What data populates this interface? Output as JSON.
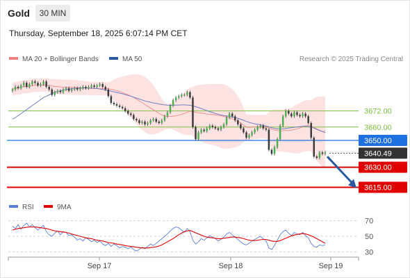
{
  "header": {
    "symbol": "Gold",
    "timeframe": "30 MIN",
    "datetime": "Thursday, September 18, 2025 6:07:14 PM CET"
  },
  "legend": {
    "bollinger_label": "MA 20 + Bollinger Bands",
    "bollinger_color": "#f08080",
    "ma50_label": "MA 50",
    "ma50_color": "#2c5aa0",
    "rsi_label": "RSI",
    "rsi_color": "#5b7fd6",
    "rsi_ma_label": "9MA",
    "rsi_ma_color": "#e00000",
    "source": "Research © 2025 Trading Central"
  },
  "colors": {
    "candle": "#4caf50",
    "band_fill": "#fde2e2",
    "resistance": "#7fbf3f",
    "pivot": "#1e6fe0",
    "support": "#e00000",
    "current": "#333333",
    "arrow": "#2c5aa0"
  },
  "chart_data": [
    {
      "type": "candlestick",
      "title": "Gold",
      "timeframe": "30 MIN",
      "y_range": [
        3608,
        3705
      ],
      "x_ticks": [
        "Sep 17",
        "Sep 18",
        "Sep 19"
      ],
      "levels": [
        {
          "value": 3672.0,
          "label": "3672.00",
          "kind": "resistance"
        },
        {
          "value": 3660.0,
          "label": "3660.00",
          "kind": "resistance"
        },
        {
          "value": 3650.0,
          "label": "3650.00",
          "kind": "pivot"
        },
        {
          "value": 3640.49,
          "label": "3640.49",
          "kind": "current"
        },
        {
          "value": 3630.0,
          "label": "3630.00",
          "kind": "support"
        },
        {
          "value": 3615.0,
          "label": "3615.00",
          "kind": "support"
        }
      ],
      "projected_path": {
        "from": 3640,
        "to": 3615
      },
      "close": [
        3688,
        3690,
        3689,
        3691,
        3693,
        3690,
        3692,
        3694,
        3693,
        3691,
        3692,
        3694,
        3690,
        3688,
        3684,
        3686,
        3687,
        3686,
        3688,
        3689,
        3687,
        3688,
        3689,
        3688,
        3689,
        3690,
        3689,
        3690,
        3691,
        3690,
        3691,
        3692,
        3690,
        3688,
        3683,
        3678,
        3677,
        3676,
        3675,
        3674,
        3672,
        3670,
        3669,
        3666,
        3665,
        3663,
        3664,
        3662,
        3663,
        3665,
        3666,
        3664,
        3663,
        3665,
        3668,
        3671,
        3676,
        3680,
        3682,
        3683,
        3684,
        3684,
        3686,
        3682,
        3660,
        3651,
        3656,
        3658,
        3657,
        3659,
        3661,
        3660,
        3659,
        3658,
        3660,
        3662,
        3667,
        3670,
        3668,
        3665,
        3662,
        3659,
        3656,
        3652,
        3654,
        3656,
        3658,
        3660,
        3661,
        3659,
        3658,
        3643,
        3640,
        3645,
        3651,
        3661,
        3668,
        3672,
        3670,
        3668,
        3671,
        3669,
        3668,
        3670,
        3668,
        3663,
        3652,
        3638,
        3637,
        3641,
        3640,
        3641
      ],
      "ma50": [
        3666,
        3667,
        3668.5,
        3670,
        3671.5,
        3673,
        3674.5,
        3676,
        3677.5,
        3679,
        3680.5,
        3682,
        3683,
        3684,
        3685,
        3686,
        3686.5,
        3687,
        3687.5,
        3688,
        3688.3,
        3688.5,
        3688.7,
        3688.9,
        3689,
        3689.1,
        3689.1,
        3689.1,
        3689,
        3688.9,
        3688.7,
        3688.4,
        3688,
        3687.6,
        3687.2,
        3686.8,
        3686.3,
        3685.8,
        3685.3,
        3684.8,
        3684.2,
        3683.6,
        3683,
        3682.3,
        3681.6,
        3680.9,
        3680.2,
        3679.5,
        3679,
        3678.5,
        3678,
        3677.6,
        3677.2,
        3676.8,
        3676.5,
        3676.3,
        3676.2,
        3676.2,
        3676.3,
        3676.4,
        3676.5,
        3676.5,
        3676.4,
        3676.2,
        3675.8,
        3675.2,
        3674.5,
        3673.8,
        3673,
        3672.2,
        3671.5,
        3670.8,
        3670.1,
        3669.5,
        3669,
        3668.6,
        3668.3,
        3668,
        3667.6,
        3667.1,
        3666.5,
        3665.8,
        3665,
        3664.2,
        3663.5,
        3662.9,
        3662.4,
        3662,
        3661.6,
        3661.2,
        3660.8,
        3660.2,
        3659.5,
        3659,
        3658.6,
        3658.5,
        3658.6,
        3658.9,
        3659.2,
        3659.5,
        3659.8,
        3660.1,
        3660.3,
        3660.5,
        3660.6,
        3660.4,
        3660,
        3659.2,
        3658.3,
        3657.4,
        3656.6,
        3655.8
      ]
    },
    {
      "type": "line",
      "title": "RSI",
      "y_range": [
        25,
        75
      ],
      "y_ticks": [
        30,
        50,
        70
      ],
      "series": [
        {
          "name": "RSI",
          "values": [
            63,
            60,
            65,
            59,
            64,
            67,
            62,
            65,
            61,
            58,
            61,
            64,
            56,
            52,
            50,
            54,
            57,
            52,
            56,
            55,
            51,
            52,
            49,
            45,
            47,
            44,
            48,
            46,
            43,
            45,
            42,
            44,
            40,
            38,
            41,
            37,
            40,
            38,
            35,
            37,
            36,
            34,
            36,
            33,
            31,
            33,
            36,
            34,
            37,
            40,
            38,
            41,
            44,
            47,
            50,
            53,
            57,
            60,
            62,
            61,
            58,
            55,
            60,
            56,
            45,
            40,
            43,
            47,
            45,
            48,
            51,
            49,
            47,
            44,
            46,
            49,
            53,
            55,
            52,
            49,
            46,
            43,
            40,
            39,
            41,
            44,
            46,
            48,
            50,
            47,
            44,
            35,
            33,
            38,
            45,
            52,
            56,
            58,
            54,
            51,
            55,
            53,
            52,
            55,
            51,
            48,
            41,
            37,
            36,
            39,
            38,
            39
          ]
        },
        {
          "name": "9MA",
          "values": [
            58,
            59,
            60,
            60.5,
            61,
            61.5,
            62,
            62,
            62,
            61.5,
            61,
            60.5,
            60,
            59,
            58,
            57,
            56.5,
            56,
            55.5,
            55,
            54,
            53,
            52,
            51,
            50,
            49,
            48,
            47.5,
            47,
            46,
            45,
            44.5,
            44,
            43,
            42,
            41.5,
            41,
            40,
            39.5,
            39,
            38,
            37.5,
            37,
            36.5,
            36,
            35.5,
            35,
            35,
            35,
            35.5,
            36,
            36.5,
            37.5,
            39,
            41,
            43,
            45,
            47,
            49.5,
            52,
            54,
            56,
            57,
            57.5,
            56,
            54.5,
            53,
            51.5,
            50,
            49,
            48.5,
            48,
            47.5,
            47,
            47,
            47.5,
            48,
            48.5,
            49,
            49,
            48.5,
            48,
            47,
            46,
            45,
            44.5,
            44.5,
            45,
            45.5,
            46,
            46,
            45,
            44,
            43.5,
            43.5,
            44.5,
            46,
            47.5,
            49,
            50.5,
            51.5,
            52.5,
            53,
            53.5,
            53,
            52,
            50.5,
            49,
            47,
            45,
            43,
            41
          ]
        }
      ]
    }
  ]
}
